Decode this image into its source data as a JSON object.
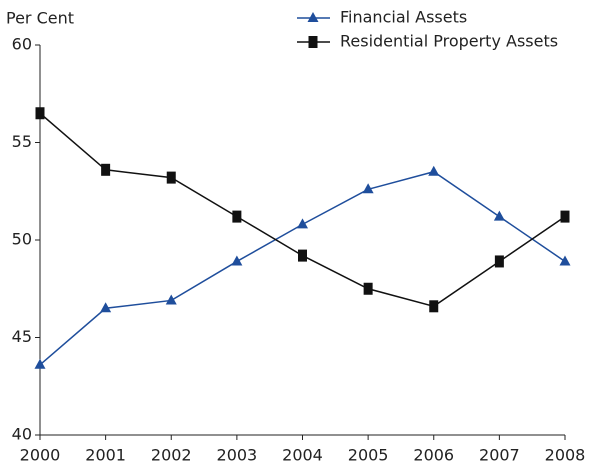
{
  "chart_data": {
    "type": "line",
    "y_label": "Per Cent",
    "categories": [
      "2000",
      "2001",
      "2002",
      "2003",
      "2004",
      "2005",
      "2006",
      "2007",
      "2008"
    ],
    "series": [
      {
        "name": "Financial Assets",
        "color": "#1f4e9c",
        "marker": "triangle",
        "values": [
          43.6,
          46.5,
          46.9,
          48.9,
          50.8,
          52.6,
          53.5,
          51.2,
          48.9
        ]
      },
      {
        "name": "Residential Property Assets",
        "color": "#111111",
        "marker": "square",
        "values": [
          56.5,
          53.6,
          53.2,
          51.2,
          49.2,
          47.5,
          46.6,
          48.9,
          51.2
        ]
      }
    ],
    "ylim": [
      40,
      60
    ],
    "yticks": [
      40,
      45,
      50,
      55,
      60
    ]
  }
}
